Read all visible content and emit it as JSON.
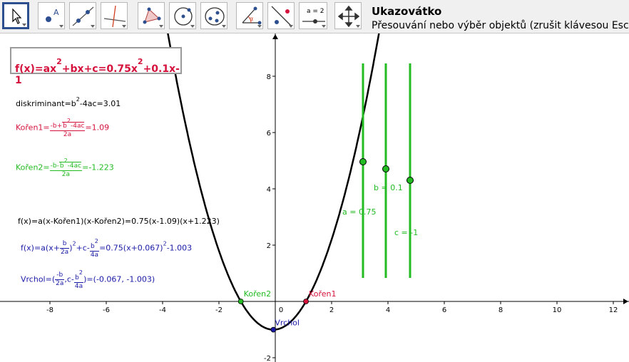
{
  "toolbar": {
    "tools": [
      {
        "name": "move-tool",
        "selected": true
      },
      {
        "name": "point-tool"
      },
      {
        "name": "line-tool"
      },
      {
        "name": "perpendicular-line-tool"
      },
      {
        "name": "polygon-tool"
      },
      {
        "name": "circle-tool"
      },
      {
        "name": "conic-tool"
      },
      {
        "name": "angle-tool"
      },
      {
        "name": "reflect-tool"
      },
      {
        "name": "slider-tool",
        "label": "a = 2"
      },
      {
        "name": "move-view-tool"
      }
    ],
    "title": "Ukazovátko",
    "help": "Přesouvání nebo výběr objektů (zrušit klávesou Esc)"
  },
  "colors": {
    "accent_red": "#d4123c",
    "green": "#22bb22",
    "blue": "#1a1aa6",
    "curve": "#000000"
  },
  "formulas": {
    "function_box": {
      "p1": "f(x)=ax",
      "p2": "2",
      "p3": "+bx+c=0.75x",
      "p4": "2",
      "p5": "+0.1x-1"
    },
    "discriminant": {
      "p1": "diskriminant=b",
      "p2": "2",
      "p3": "-4ac=3.01"
    },
    "root1": {
      "label": "Kořen1=",
      "num_a": "-b+",
      "num_b": "b",
      "num_c": "2",
      "num_d": "-4ac",
      "den": "2a",
      "value": "=1.09"
    },
    "root2": {
      "label": "Kořen2=",
      "num_a": "-b-",
      "num_b": "b",
      "num_c": "2",
      "num_d": "-4ac",
      "den": "2a",
      "value": "=-1.223"
    },
    "factored": "f(x)=a(x-Kořen1)(x-Kořen2)=0.75(x-1.09)(x+1.223)",
    "vertex_form": {
      "p1": "f(x)=a(x+",
      "num1": "b",
      "den1": "2a",
      "p2": ")",
      "sup1": "2",
      "p3": "+c-",
      "num2": "b",
      "sup_num2": "2",
      "den2": "4a",
      "p4": "=0.75(x+0.067)",
      "sup2": "2",
      "p5": "-1.003"
    },
    "vertex": {
      "p1": "Vrchol=(",
      "num1": "-b",
      "den1": "2a",
      "p2": ",c-",
      "num2": "b",
      "sup_num2": "2",
      "den2": "4a",
      "p3": ")=(-0.067, -1.003)"
    }
  },
  "graph": {
    "x_ticks": [
      "-8",
      "-6",
      "-4",
      "-2",
      "0",
      "2",
      "4",
      "6",
      "8",
      "10",
      "12"
    ],
    "y_ticks": [
      "8",
      "6",
      "4",
      "2",
      "-2"
    ],
    "point_labels": {
      "root1": "Kořen1",
      "root2": "Kořen2",
      "vertex": "Vrchol"
    },
    "sliders": [
      {
        "label": "a = 0.75",
        "value": 0.75
      },
      {
        "label": "b = 0.1",
        "value": 0.1
      },
      {
        "label": "c = -1",
        "value": -1
      }
    ]
  }
}
